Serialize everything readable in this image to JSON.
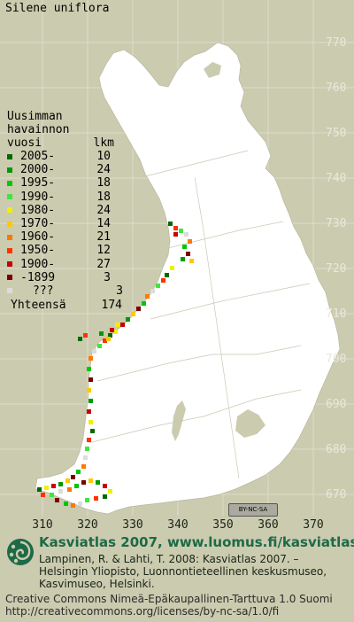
{
  "species": "Silene uniflora",
  "legend": {
    "heading": [
      "Uusimman",
      "havainnon"
    ],
    "col_period": "vuosi",
    "col_count": "lkm",
    "rows": [
      {
        "period": "2005-",
        "count": "10",
        "color": "#006a00"
      },
      {
        "period": "2000-",
        "count": "24",
        "color": "#009a00"
      },
      {
        "period": "1995-",
        "count": "18",
        "color": "#00c800"
      },
      {
        "period": "1990-",
        "count": "18",
        "color": "#3ee63e"
      },
      {
        "period": "1980-",
        "count": "24",
        "color": "#f0f000"
      },
      {
        "period": "1970-",
        "count": "14",
        "color": "#ffc800"
      },
      {
        "period": "1960-",
        "count": "21",
        "color": "#ff7800"
      },
      {
        "period": "1950-",
        "count": "12",
        "color": "#ff3200"
      },
      {
        "period": "1900-",
        "count": "27",
        "color": "#c80000"
      },
      {
        "period": "-1899",
        "count": "3",
        "color": "#780000"
      },
      {
        "period": "???",
        "count": "3",
        "color": "#dcdcdc"
      }
    ],
    "total_label": "Yhteensä",
    "total_count": "174"
  },
  "grid": {
    "y_labels": [
      "770",
      "760",
      "750",
      "740",
      "730",
      "720",
      "710",
      "700",
      "690",
      "680",
      "670"
    ],
    "x_labels": [
      "310",
      "320",
      "330",
      "340",
      "350",
      "360",
      "370"
    ]
  },
  "cc_badge": "BY-NC-SA",
  "footer": {
    "title": "Kasviatlas 2007, www.luomus.fi/kasviatlas",
    "reference": "Lampinen, R. & Lahti, T. 2008: Kasviatlas 2007. – Helsingin Yliopisto, Luonnontieteellinen keskusmuseo, Kasvimuseo, Helsinki.",
    "license_line1": "Creative Commons Nimeä-Epäkaupallinen-Tarttuva 1.0 Suomi",
    "license_line2": "http://creativecommons.org/licenses/by-nc-sa/1.0/fi"
  },
  "colors": {
    "background": "#cbcbaf",
    "land": "#ffffff",
    "grid": "#dcdccc",
    "footer_title": "#1d6a46"
  }
}
